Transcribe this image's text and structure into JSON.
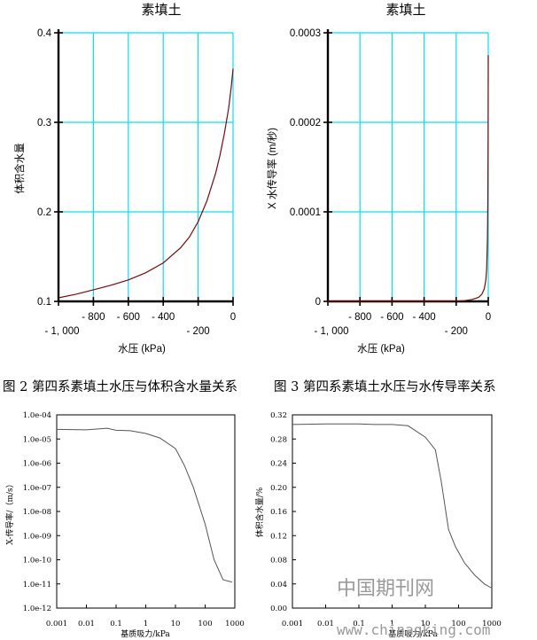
{
  "captions": {
    "fig2": "图 2 第四系素填土水压与体积含水量关系",
    "fig3": "图 3 第四系素填土水压与水传导率关系"
  },
  "watermark": {
    "cn": "中国期刊网",
    "url": "www.chinaqking.com"
  },
  "colors": {
    "grid": "#00e5ee",
    "curve_red": "#7a0a0a",
    "curve_gray": "#555555"
  },
  "chart_data": [
    {
      "id": "c1",
      "type": "line",
      "title": "素填土",
      "xlabel": "水压 (kPa)",
      "ylabel": "体积含水量",
      "xlim": [
        -1000,
        0
      ],
      "ylim": [
        0.1,
        0.4
      ],
      "y_ticks": [
        "0.1",
        "0.2",
        "0.3",
        "0.4"
      ],
      "x_ticks_upper": [
        "- 800",
        "- 600",
        "- 400",
        "0"
      ],
      "x_ticks_lower": [
        "- 1, 000",
        "- 200"
      ],
      "grid": true,
      "series": [
        {
          "x": [
            -1000,
            -900,
            -800,
            -700,
            -600,
            -500,
            -400,
            -300,
            -250,
            -200,
            -150,
            -100,
            -75,
            -50,
            -25,
            -10,
            0
          ],
          "y": [
            0.104,
            0.108,
            0.113,
            0.118,
            0.124,
            0.132,
            0.143,
            0.16,
            0.172,
            0.189,
            0.212,
            0.243,
            0.263,
            0.287,
            0.316,
            0.34,
            0.36
          ]
        }
      ]
    },
    {
      "id": "c2",
      "type": "line",
      "title": "素填土",
      "xlabel": "水压 (kPa)",
      "ylabel": "X 水传导率 (m/秒)",
      "xlim": [
        -1000,
        0
      ],
      "ylim": [
        0,
        0.0003
      ],
      "y_ticks": [
        "0",
        "0.0001",
        "0.0002",
        "0.0003"
      ],
      "x_ticks_upper": [
        "- 800",
        "- 600",
        "- 400",
        "0"
      ],
      "x_ticks_lower": [
        "- 1, 000",
        "- 200"
      ],
      "grid": true,
      "series": [
        {
          "x": [
            -1000,
            -300,
            -200,
            -150,
            -100,
            -60,
            -40,
            -25,
            -15,
            -10,
            -5,
            -3,
            -1,
            0
          ],
          "y": [
            0,
            0,
            3e-07,
            8e-07,
            2.2e-06,
            4.5e-06,
            8e-06,
            1.4e-05,
            2.4e-05,
            3.6e-05,
            7e-05,
            0.00011,
            0.00018,
            0.000275
          ]
        }
      ]
    },
    {
      "id": "c3",
      "type": "line",
      "title": "",
      "xlabel": "基质吸力/kPa",
      "ylabel": "X-传导率/（m/s）",
      "xscale": "log",
      "yscale": "log",
      "xlim": [
        0.001,
        1000
      ],
      "ylim": [
        1e-12,
        0.0001
      ],
      "x_ticks": [
        "0.001",
        "0.01",
        "0.1",
        "1",
        "10",
        "100",
        "1000"
      ],
      "y_ticks": [
        "1.0e-12",
        "1.0e-11",
        "1.0e-10",
        "1.0e-09",
        "1.0e-08",
        "1.0e-07",
        "1.0e-06",
        "1.0e-05",
        "1.0e-04"
      ],
      "grid": false,
      "series": [
        {
          "x": [
            0.001,
            0.01,
            0.05,
            0.1,
            0.3,
            1,
            3,
            10,
            20,
            40,
            100,
            200,
            400,
            800
          ],
          "y": [
            2.5e-05,
            2.4e-05,
            2.8e-05,
            2.3e-05,
            2.2e-05,
            1.7e-05,
            1.1e-05,
            4e-06,
            8e-07,
            1e-07,
            3e-09,
            1e-10,
            1.5e-11,
            1.2e-11
          ]
        }
      ]
    },
    {
      "id": "c4",
      "type": "line",
      "title": "",
      "xlabel": "基质吸力/kPa",
      "ylabel": "体积含水量/%",
      "xscale": "log",
      "xlim": [
        0.001,
        1000
      ],
      "ylim": [
        0,
        0.32
      ],
      "x_ticks": [
        "0.001",
        "0.01",
        "0.1",
        "1",
        "10",
        "100",
        "1000"
      ],
      "y_ticks": [
        "0.00",
        "0.04",
        "0.08",
        "0.12",
        "0.16",
        "0.20",
        "0.24",
        "0.28",
        "0.32"
      ],
      "grid": false,
      "series": [
        {
          "x": [
            0.001,
            0.01,
            0.1,
            0.3,
            1,
            3,
            10,
            20,
            30,
            50,
            80,
            150,
            300,
            600,
            1000
          ],
          "y": [
            0.304,
            0.305,
            0.305,
            0.304,
            0.304,
            0.302,
            0.283,
            0.262,
            0.21,
            0.13,
            0.102,
            0.075,
            0.055,
            0.04,
            0.033
          ]
        }
      ]
    }
  ]
}
